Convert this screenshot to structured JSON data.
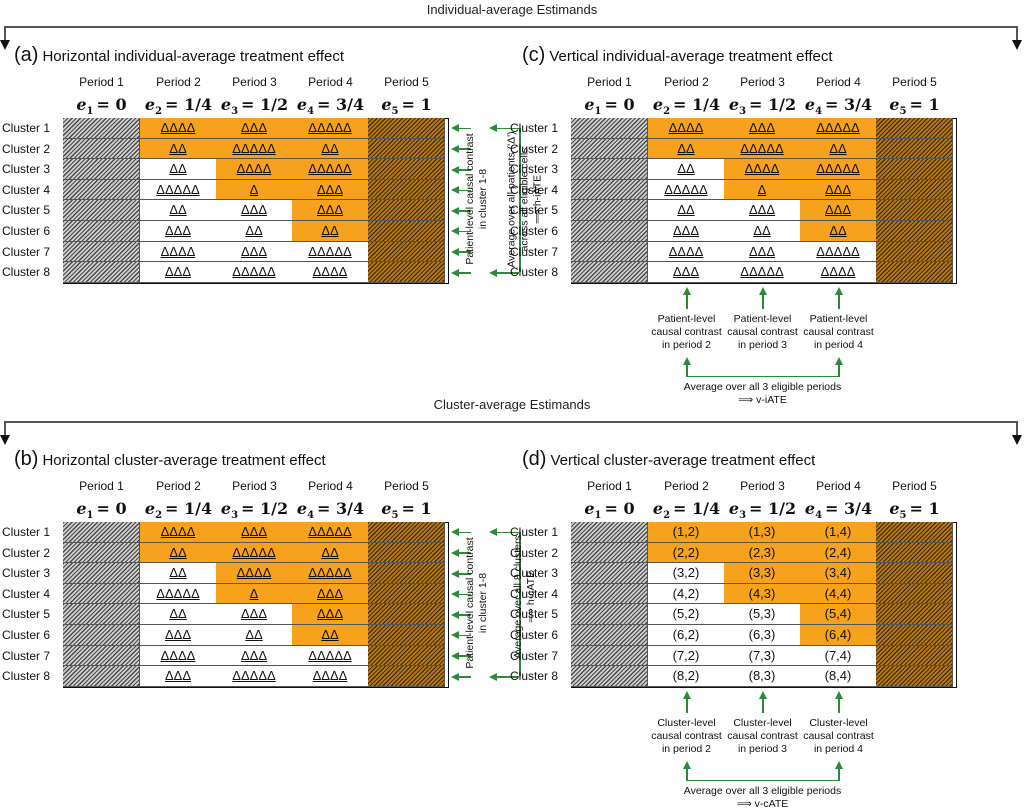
{
  "sections": {
    "individual": "Individual-average Estimands",
    "cluster": "Cluster-average Estimands"
  },
  "periods": [
    "Period 1",
    "Period 2",
    "Period 3",
    "Period 4",
    "Period 5"
  ],
  "exposures": [
    {
      "sym": "e",
      "sub": "1",
      "val": "= 0"
    },
    {
      "sym": "e",
      "sub": "2",
      "val": "= 1/4"
    },
    {
      "sym": "e",
      "sub": "3",
      "val": "= 1/2"
    },
    {
      "sym": "e",
      "sub": "4",
      "val": "= 3/4"
    },
    {
      "sym": "e",
      "sub": "5",
      "val": "= 1"
    }
  ],
  "clusters": [
    "Cluster 1",
    "Cluster 2",
    "Cluster 3",
    "Cluster 4",
    "Cluster 5",
    "Cluster 6",
    "Cluster 7",
    "Cluster 8"
  ],
  "treated_pattern": [
    [
      true,
      true,
      true
    ],
    [
      true,
      true,
      true
    ],
    [
      false,
      true,
      true
    ],
    [
      false,
      true,
      true
    ],
    [
      false,
      false,
      true
    ],
    [
      false,
      false,
      true
    ],
    [
      false,
      false,
      false
    ],
    [
      false,
      false,
      false
    ]
  ],
  "triangle_cells": [
    [
      "ΔΔΔΔ",
      "ΔΔΔ",
      "ΔΔΔΔΔ"
    ],
    [
      "ΔΔ",
      "ΔΔΔΔΔ",
      "ΔΔ"
    ],
    [
      "ΔΔ",
      "ΔΔΔΔ",
      "ΔΔΔΔΔ"
    ],
    [
      "ΔΔΔΔΔ",
      "Δ",
      "ΔΔΔ"
    ],
    [
      "ΔΔ",
      "ΔΔΔ",
      "ΔΔΔ"
    ],
    [
      "ΔΔΔ",
      "ΔΔ",
      "ΔΔ"
    ],
    [
      "ΔΔΔΔ",
      "ΔΔΔ",
      "ΔΔΔΔΔ"
    ],
    [
      "ΔΔΔ",
      "ΔΔΔΔΔ",
      "ΔΔΔΔ"
    ]
  ],
  "pair_cells": [
    [
      "(1,2)",
      "(1,3)",
      "(1,4)"
    ],
    [
      "(2,2)",
      "(2,3)",
      "(2,4)"
    ],
    [
      "(3,2)",
      "(3,3)",
      "(3,4)"
    ],
    [
      "(4,2)",
      "(4,3)",
      "(4,4)"
    ],
    [
      "(5,2)",
      "(5,3)",
      "(5,4)"
    ],
    [
      "(6,2)",
      "(6,3)",
      "(6,4)"
    ],
    [
      "(7,2)",
      "(7,3)",
      "(7,4)"
    ],
    [
      "(8,2)",
      "(8,3)",
      "(8,4)"
    ]
  ],
  "panels": {
    "a": {
      "letter": "(a)",
      "title": "Horizontal individual-average treatment effect",
      "note1": "Patient-level causal contrast\nin cluster 1-8",
      "note2": "Average over all patients ('Δ')\nacross all eligible cells\n⟹ h-iATE"
    },
    "b": {
      "letter": "(b)",
      "title": "Horizontal cluster-average treatment effect",
      "note1": "Patient-level causal contrast\nin cluster 1-8",
      "note2": "Average over all 8 clusters\n⟹ h-cATE"
    },
    "c": {
      "letter": "(c)",
      "title": "Vertical individual-average treatment effect",
      "period_notes": [
        "Patient-level\ncausal contrast\nin period 2",
        "Patient-level\ncausal contrast\nin period 3",
        "Patient-level\ncausal contrast\nin period 4"
      ],
      "summary": "Average over all 3 eligible periods\n⟹ v-iATE"
    },
    "d": {
      "letter": "(d)",
      "title": "Vertical cluster-average treatment effect",
      "period_notes": [
        "Cluster-level\ncausal contrast\nin period 2",
        "Cluster-level\ncausal contrast\nin period 3",
        "Cluster-level\ncausal contrast\nin period 4"
      ],
      "summary": "Average over all 3 eligible periods\n⟹ v-cATE"
    }
  },
  "colors": {
    "treated": "#f7a21c",
    "control": "#ffffff",
    "arrow": "#2e8a3a"
  }
}
